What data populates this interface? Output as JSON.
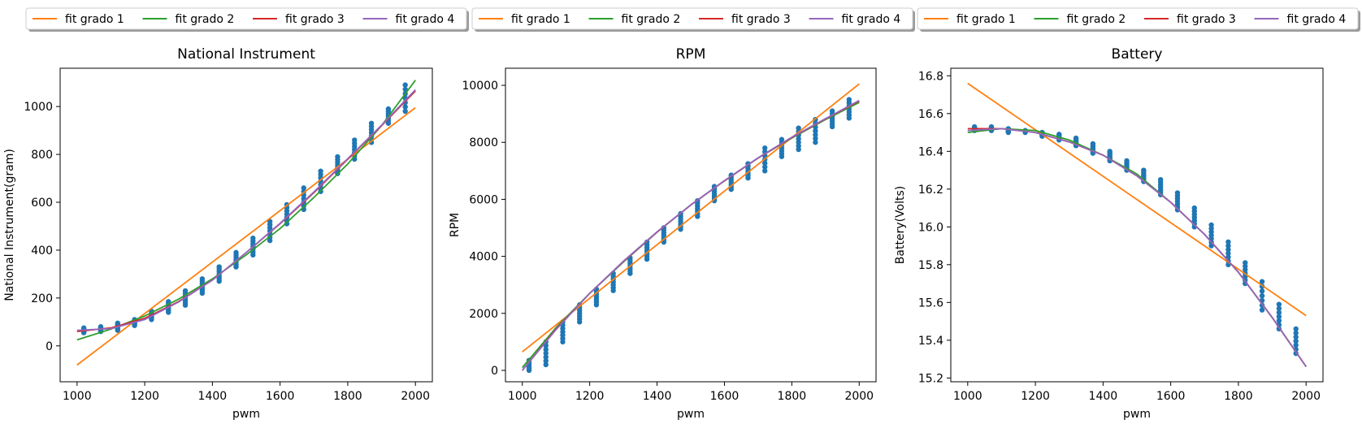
{
  "colors": {
    "scatter": "#1f77b4",
    "fit1": "#ff7f0e",
    "fit2": "#2ca02c",
    "fit3": "#d62728",
    "fit4": "#9467bd"
  },
  "legend": {
    "items": [
      {
        "label": "fit grado 1",
        "color": "#ff7f0e"
      },
      {
        "label": "fit grado 2",
        "color": "#2ca02c"
      },
      {
        "label": "fit grado 3",
        "color": "#d62728"
      },
      {
        "label": "fit grado 4",
        "color": "#9467bd"
      }
    ]
  },
  "chart_data": [
    {
      "type": "scatter",
      "title": "National Instrument",
      "xlabel": "pwm",
      "ylabel": "National Instrument(gram)",
      "xlim": [
        950,
        2050
      ],
      "ylim": [
        -150,
        1160
      ],
      "xticks": [
        1000,
        1200,
        1400,
        1600,
        1800,
        2000
      ],
      "yticks": [
        0,
        200,
        400,
        600,
        800,
        1000
      ],
      "legend_position": "above",
      "scatter": {
        "x": [
          1020,
          1070,
          1120,
          1170,
          1220,
          1270,
          1320,
          1370,
          1420,
          1470,
          1520,
          1570,
          1620,
          1670,
          1720,
          1770,
          1820,
          1870,
          1920,
          1970
        ],
        "ymin": [
          55,
          60,
          65,
          85,
          110,
          140,
          170,
          220,
          270,
          330,
          380,
          440,
          510,
          570,
          645,
          720,
          780,
          850,
          930,
          980
        ],
        "ymax": [
          75,
          80,
          95,
          110,
          145,
          185,
          230,
          280,
          330,
          390,
          450,
          520,
          590,
          660,
          730,
          790,
          860,
          930,
          990,
          1090
        ]
      },
      "series": [
        {
          "name": "fit grado 1",
          "type": "line",
          "x": [
            1000,
            2000
          ],
          "y": [
            -80,
            995
          ]
        },
        {
          "name": "fit grado 2",
          "type": "line",
          "x": [
            1000,
            1100,
            1200,
            1300,
            1400,
            1500,
            1600,
            1700,
            1800,
            1900,
            2000
          ],
          "y": [
            25,
            70,
            125,
            195,
            280,
            380,
            490,
            620,
            760,
            920,
            1110
          ]
        },
        {
          "name": "fit grado 3",
          "type": "line",
          "x": [
            1000,
            1100,
            1200,
            1300,
            1400,
            1500,
            1600,
            1700,
            1800,
            1900,
            2000
          ],
          "y": [
            60,
            75,
            115,
            185,
            275,
            390,
            510,
            640,
            780,
            920,
            1065
          ]
        },
        {
          "name": "fit grado 4",
          "type": "line",
          "x": [
            1000,
            1100,
            1200,
            1300,
            1400,
            1500,
            1600,
            1700,
            1800,
            1900,
            2000
          ],
          "y": [
            65,
            72,
            110,
            183,
            275,
            390,
            512,
            643,
            782,
            922,
            1070
          ]
        }
      ]
    },
    {
      "type": "scatter",
      "title": "RPM",
      "xlabel": "pwm",
      "ylabel": "RPM",
      "xlim": [
        950,
        2050
      ],
      "ylim": [
        -400,
        10600
      ],
      "xticks": [
        1000,
        1200,
        1400,
        1600,
        1800,
        2000
      ],
      "yticks": [
        0,
        2000,
        4000,
        6000,
        8000,
        10000
      ],
      "legend_position": "above",
      "scatter": {
        "x": [
          1020,
          1070,
          1120,
          1170,
          1220,
          1270,
          1320,
          1370,
          1420,
          1470,
          1520,
          1570,
          1620,
          1670,
          1720,
          1770,
          1820,
          1870,
          1920,
          1970
        ],
        "ymin": [
          0,
          200,
          1000,
          1700,
          2300,
          2800,
          3400,
          3900,
          4500,
          4950,
          5400,
          5950,
          6350,
          6750,
          7000,
          7500,
          7750,
          8000,
          8550,
          8850
        ],
        "ymax": [
          350,
          1000,
          1700,
          2300,
          2850,
          3400,
          3950,
          4500,
          5000,
          5500,
          5950,
          6450,
          6850,
          7250,
          7800,
          8100,
          8500,
          8800,
          9100,
          9500
        ]
      },
      "series": [
        {
          "name": "fit grado 1",
          "type": "line",
          "x": [
            1000,
            2000
          ],
          "y": [
            650,
            10050
          ]
        },
        {
          "name": "fit grado 2",
          "type": "line",
          "x": [
            1000,
            1100,
            1200,
            1300,
            1400,
            1500,
            1600,
            1700,
            1800,
            1900,
            2000
          ],
          "y": [
            100,
            1500,
            2700,
            3800,
            4850,
            5800,
            6650,
            7450,
            8150,
            8800,
            9400
          ]
        },
        {
          "name": "fit grado 3",
          "type": "line",
          "x": [
            1000,
            1100,
            1200,
            1300,
            1400,
            1500,
            1600,
            1700,
            1800,
            1900,
            2000
          ],
          "y": [
            0,
            1450,
            2700,
            3820,
            4850,
            5800,
            6650,
            7450,
            8170,
            8820,
            9450
          ]
        },
        {
          "name": "fit grado 4",
          "type": "line",
          "x": [
            1000,
            1100,
            1200,
            1300,
            1400,
            1500,
            1600,
            1700,
            1800,
            1900,
            2000
          ],
          "y": [
            0,
            1430,
            2700,
            3830,
            4860,
            5800,
            6660,
            7460,
            8180,
            8830,
            9470
          ]
        }
      ]
    },
    {
      "type": "scatter",
      "title": "Battery",
      "xlabel": "pwm",
      "ylabel": "Battery(Volts)",
      "xlim": [
        950,
        2050
      ],
      "ylim": [
        15.18,
        16.84
      ],
      "xticks": [
        1000,
        1200,
        1400,
        1600,
        1800,
        2000
      ],
      "yticks": [
        15.2,
        15.4,
        15.6,
        15.8,
        16.0,
        16.2,
        16.4,
        16.6,
        16.8
      ],
      "legend_position": "above",
      "scatter": {
        "x": [
          1020,
          1070,
          1120,
          1170,
          1220,
          1270,
          1320,
          1370,
          1420,
          1470,
          1520,
          1570,
          1620,
          1670,
          1720,
          1770,
          1820,
          1870,
          1920,
          1970
        ],
        "ymin": [
          16.51,
          16.51,
          16.5,
          16.5,
          16.48,
          16.46,
          16.43,
          16.39,
          16.35,
          16.3,
          16.24,
          16.17,
          16.09,
          16.0,
          15.9,
          15.8,
          15.7,
          15.56,
          15.46,
          15.33
        ],
        "ymax": [
          16.53,
          16.53,
          16.52,
          16.51,
          16.5,
          16.49,
          16.47,
          16.44,
          16.4,
          16.35,
          16.3,
          16.25,
          16.18,
          16.1,
          16.01,
          15.92,
          15.81,
          15.71,
          15.59,
          15.46
        ]
      },
      "series": [
        {
          "name": "fit grado 1",
          "type": "line",
          "x": [
            1000,
            2000
          ],
          "y": [
            16.76,
            15.53
          ]
        },
        {
          "name": "fit grado 2",
          "type": "line",
          "x": [
            1000,
            1100,
            1200,
            1300,
            1400,
            1500,
            1600,
            1700,
            1800,
            1900,
            2000
          ],
          "y": [
            16.5,
            16.52,
            16.51,
            16.46,
            16.38,
            16.28,
            16.13,
            15.96,
            15.76,
            15.52,
            15.26
          ]
        },
        {
          "name": "fit grado 3",
          "type": "line",
          "x": [
            1000,
            1100,
            1200,
            1300,
            1400,
            1500,
            1600,
            1700,
            1800,
            1900,
            2000
          ],
          "y": [
            16.52,
            16.52,
            16.5,
            16.45,
            16.38,
            16.27,
            16.13,
            15.96,
            15.76,
            15.52,
            15.26
          ]
        },
        {
          "name": "fit grado 4",
          "type": "line",
          "x": [
            1000,
            1100,
            1200,
            1300,
            1400,
            1500,
            1600,
            1700,
            1800,
            1900,
            2000
          ],
          "y": [
            16.51,
            16.52,
            16.5,
            16.45,
            16.38,
            16.27,
            16.13,
            15.96,
            15.76,
            15.52,
            15.26
          ]
        }
      ]
    }
  ]
}
